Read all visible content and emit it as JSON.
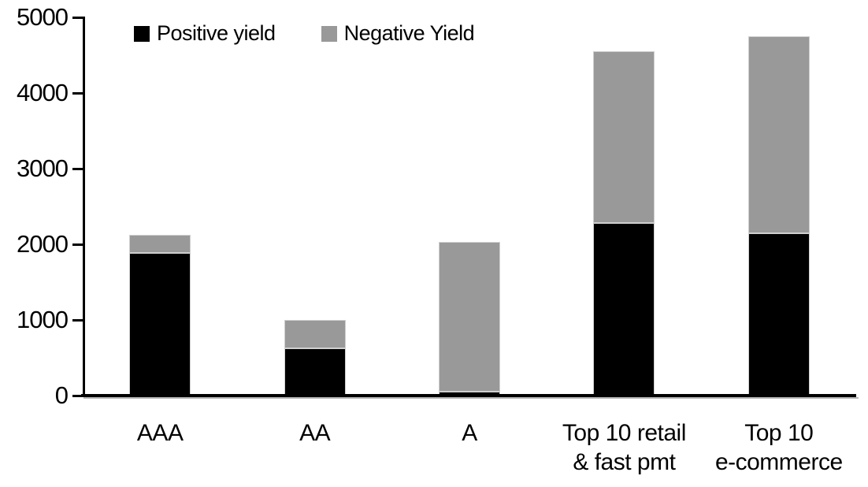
{
  "chart_data": {
    "type": "bar",
    "stacked": true,
    "title": "",
    "xlabel": "",
    "ylabel": "",
    "categories": [
      "AAA",
      "AA",
      "A",
      "Top 10 retail & fast pmt",
      "Top 10 e-commerce"
    ],
    "category_label_lines": [
      [
        "AAA"
      ],
      [
        "AA"
      ],
      [
        "A"
      ],
      [
        "Top 10 retail",
        "& fast pmt"
      ],
      [
        "Top 10",
        "e-commerce"
      ]
    ],
    "series": [
      {
        "name": "Positive yield",
        "color": "#000000",
        "values": [
          1890,
          620,
          50,
          2280,
          2150
        ]
      },
      {
        "name": "Negative Yield",
        "color": "#999999",
        "values": [
          230,
          380,
          1980,
          2270,
          2600
        ]
      }
    ],
    "stack_totals": [
      2120,
      1000,
      2030,
      4550,
      4750
    ],
    "ylim": [
      0,
      5000
    ],
    "yticks": [
      0,
      1000,
      2000,
      3000,
      4000,
      5000
    ],
    "grid": false,
    "legend_position": "top-left"
  },
  "colors": {
    "background": "#ffffff",
    "axis": "#000000",
    "axis_shadow": "#b7b7b7",
    "bar_border": "#cfcfcf",
    "positive_series": "#000000",
    "negative_series": "#999999"
  }
}
